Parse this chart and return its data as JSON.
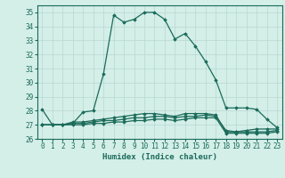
{
  "xlabel": "Humidex (Indice chaleur)",
  "ylabel": "",
  "background_color": "#d4eee8",
  "line_color": "#1a6b5a",
  "grid_color": "#b8d8d2",
  "x": [
    0,
    1,
    2,
    3,
    4,
    5,
    6,
    7,
    8,
    9,
    10,
    11,
    12,
    13,
    14,
    15,
    16,
    17,
    18,
    19,
    20,
    21,
    22,
    23
  ],
  "lines": [
    [
      28.1,
      27.0,
      27.0,
      27.1,
      27.9,
      28.0,
      30.6,
      34.8,
      34.3,
      34.5,
      35.0,
      35.0,
      34.5,
      33.1,
      33.5,
      32.6,
      31.5,
      30.2,
      28.2,
      28.2,
      28.2,
      28.1,
      27.4,
      26.8
    ],
    [
      27.0,
      27.0,
      27.0,
      27.2,
      27.2,
      27.3,
      27.4,
      27.5,
      27.6,
      27.7,
      27.8,
      27.8,
      27.7,
      27.6,
      27.8,
      27.8,
      27.8,
      27.7,
      26.5,
      26.5,
      26.6,
      26.7,
      26.7,
      26.7
    ],
    [
      27.0,
      27.0,
      27.0,
      27.1,
      27.1,
      27.2,
      27.3,
      27.3,
      27.4,
      27.5,
      27.5,
      27.6,
      27.6,
      27.5,
      27.6,
      27.6,
      27.7,
      27.6,
      26.6,
      26.5,
      26.5,
      26.5,
      26.5,
      26.6
    ],
    [
      27.0,
      27.0,
      27.0,
      27.0,
      27.0,
      27.1,
      27.1,
      27.2,
      27.2,
      27.3,
      27.3,
      27.4,
      27.4,
      27.3,
      27.4,
      27.5,
      27.5,
      27.5,
      26.4,
      26.4,
      26.4,
      26.4,
      26.4,
      26.5
    ]
  ],
  "ylim": [
    26,
    35.5
  ],
  "yticks": [
    26,
    27,
    28,
    29,
    30,
    31,
    32,
    33,
    34,
    35
  ],
  "xlim": [
    -0.5,
    23.5
  ],
  "xticks": [
    0,
    1,
    2,
    3,
    4,
    5,
    6,
    7,
    8,
    9,
    10,
    11,
    12,
    13,
    14,
    15,
    16,
    17,
    18,
    19,
    20,
    21,
    22,
    23
  ],
  "marker": "D",
  "markersize": 1.8,
  "linewidth": 0.9,
  "tick_fontsize": 5.5,
  "label_fontsize": 6.5
}
